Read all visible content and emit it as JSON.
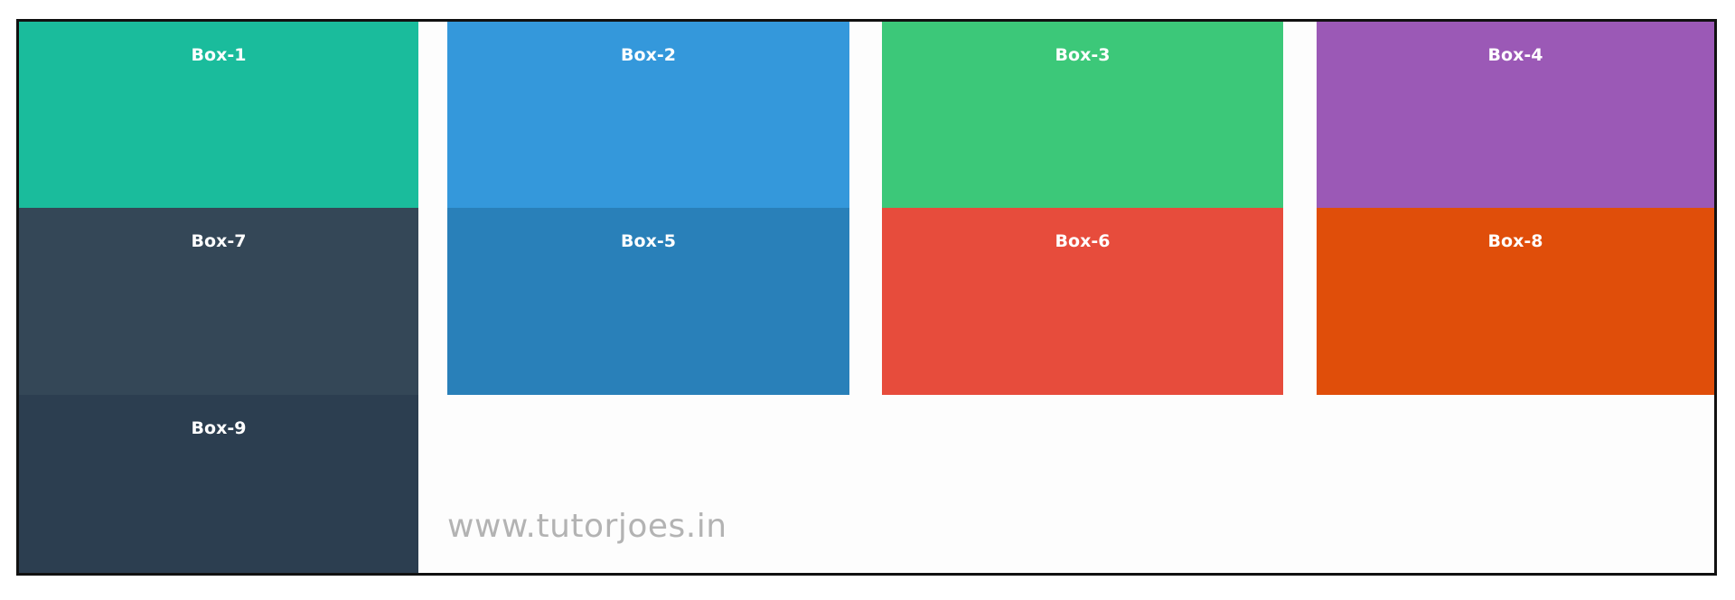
{
  "boxes": [
    {
      "id": "box-1",
      "label": "Box-1",
      "color": "#1abc9c"
    },
    {
      "id": "box-2",
      "label": "Box-2",
      "color": "#3498db"
    },
    {
      "id": "box-3",
      "label": "Box-3",
      "color": "#3cc879"
    },
    {
      "id": "box-4",
      "label": "Box-4",
      "color": "#9b59b6"
    },
    {
      "id": "box-7",
      "label": "Box-7",
      "color": "#344757"
    },
    {
      "id": "box-5",
      "label": "Box-5",
      "color": "#2980b9"
    },
    {
      "id": "box-6",
      "label": "Box-6",
      "color": "#e74c3c"
    },
    {
      "id": "box-8",
      "label": "Box-8",
      "color": "#e04e0a"
    },
    {
      "id": "box-9",
      "label": "Box-9",
      "color": "#2c3e50"
    }
  ],
  "watermark": "www.tutorjoes.in"
}
